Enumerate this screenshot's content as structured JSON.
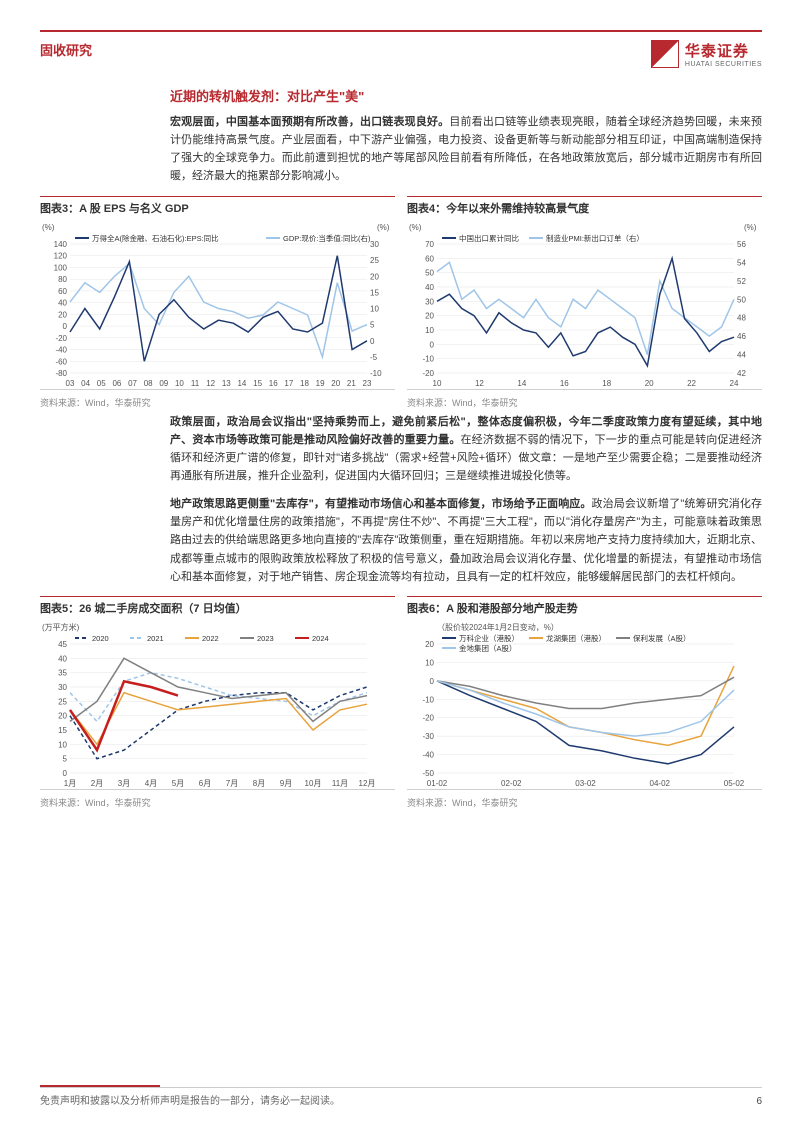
{
  "header": {
    "category": "固收研究",
    "brand": "华泰证券",
    "brand_en": "HUATAI SECURITIES"
  },
  "section_title": "近期的转机触发剂：对比产生\"美\"",
  "para1_bold": "宏观层面，中国基本面预期有所改善，出口链表现良好。",
  "para1_rest": "目前看出口链等业绩表现亮眼，随着全球经济趋势回暖，未来预计仍能维持高景气度。产业层面看，中下游产业偏强，电力投资、设备更新等与新动能部分相互印证，中国高端制造保持了强大的全球竞争力。而此前遭到担忧的地产等尾部风险目前看有所降低，在各地政策放宽后，部分城市近期房市有所回暖，经济最大的拖累部分影响减小。",
  "para2_bold": "政策层面，政治局会议指出\"坚持乘势而上，避免前紧后松\"，整体态度偏积极，今年二季度政策力度有望延续，其中地产、资本市场等政策可能是推动风险偏好改善的重要力量。",
  "para2_rest": "在经济数据不弱的情况下，下一步的重点可能是转向促进经济循环和经济更广谱的修复，即针对\"诸多挑战\"（需求+经营+风险+循环）做文章：一是地产至少需要企稳；二是要推动经济再通胀有所进展，推升企业盈利，促进国内大循环回归；三是继续推进城投化债等。",
  "para3_bold": "地产政策思路更侧重\"去库存\"，有望推动市场信心和基本面修复，市场给予正面响应。",
  "para3_rest": "政治局会议新增了\"统筹研究消化存量房产和优化增量住房的政策措施\"，不再提\"房住不炒\"、不再提\"三大工程\"，而以\"消化存量房产\"为主，可能意味着政策思路由过去的供给端思路更多地向直接的\"去库存\"政策侧重，重在短期措施。年初以来房地产支持力度持续加大，近期北京、成都等重点城市的限购政策放松释放了积极的信号意义，叠加政治局会议消化存量、优化增量的新提法，有望推动市场信心和基本面修复，对于地产销售、房企现金流等均有拉动，且具有一定的杠杆效应，能够缓解居民部门的去杠杆倾向。",
  "chart3": {
    "title": "图表3：A 股 EPS 与名义 GDP",
    "ylabel_left": "(%)",
    "ylabel_right": "(%)",
    "legend": [
      "万得全A(除金融、石油石化):EPS:同比",
      "GDP:现价:当季值:同比(右)"
    ],
    "y_left": {
      "min": -80,
      "max": 140,
      "ticks": [
        140,
        120,
        100,
        80,
        60,
        40,
        20,
        0,
        -20,
        -40,
        -60,
        -80
      ]
    },
    "y_right": {
      "min": -10,
      "max": 30,
      "ticks": [
        30,
        25,
        20,
        15,
        10,
        5,
        0,
        -5,
        -10
      ]
    },
    "x_labels": [
      "03",
      "04",
      "05",
      "06",
      "07",
      "08",
      "09",
      "10",
      "11",
      "12",
      "13",
      "14",
      "15",
      "16",
      "17",
      "18",
      "19",
      "20",
      "21",
      "23"
    ],
    "series_eps": {
      "color": "#1f3a6e",
      "data": [
        -10,
        30,
        -5,
        50,
        110,
        -60,
        20,
        45,
        15,
        -5,
        10,
        5,
        -10,
        15,
        25,
        -5,
        -10,
        5,
        120,
        -40,
        -25
      ]
    },
    "series_gdp": {
      "color": "#9fc5e8",
      "data": [
        12,
        18,
        15,
        20,
        24,
        10,
        5,
        15,
        20,
        12,
        10,
        9,
        7,
        8,
        12,
        10,
        8,
        -5,
        18,
        3,
        5
      ]
    },
    "source": "资料来源：Wind，华泰研究",
    "grid_color": "#e5e5e5",
    "background": "#ffffff",
    "axis_font_size": 8
  },
  "chart4": {
    "title": "图表4：今年以来外需维持较高景气度",
    "ylabel_left": "(%)",
    "legend": [
      "中国出口累计同比",
      "制造业PMI:新出口订单（右）"
    ],
    "y_left": {
      "min": -20,
      "max": 70,
      "ticks": [
        70,
        60,
        50,
        40,
        30,
        20,
        10,
        0,
        -10,
        -20
      ]
    },
    "y_right": {
      "min": 42,
      "max": 56,
      "ticks": [
        56,
        54,
        52,
        50,
        48,
        46,
        44,
        42
      ]
    },
    "x_labels": [
      "10",
      "12",
      "14",
      "16",
      "18",
      "20",
      "22",
      "24"
    ],
    "series_export": {
      "color": "#1f3a6e",
      "data": [
        30,
        35,
        25,
        20,
        8,
        22,
        15,
        10,
        8,
        -2,
        8,
        -8,
        -5,
        8,
        12,
        5,
        0,
        -15,
        35,
        60,
        18,
        8,
        -5,
        2,
        5
      ]
    },
    "series_pmi": {
      "color": "#9fc5e8",
      "data": [
        53,
        54,
        50,
        51,
        49,
        50,
        49,
        48,
        50,
        48,
        47,
        50,
        49,
        51,
        50,
        49,
        48,
        44,
        52,
        49,
        48,
        47,
        46,
        47,
        50
      ]
    },
    "source": "资料来源：Wind，华泰研究",
    "grid_color": "#e5e5e5",
    "background": "#ffffff",
    "axis_font_size": 8
  },
  "chart5": {
    "title": "图表5：26 城二手房成交面积（7 日均值）",
    "ylabel": "(万平方米)",
    "legend": [
      {
        "label": "2020",
        "color": "#1f3a6e",
        "dash": "4,3"
      },
      {
        "label": "2021",
        "color": "#9fc5e8",
        "dash": "4,3"
      },
      {
        "label": "2022",
        "color": "#e8a33d",
        "dash": "0"
      },
      {
        "label": "2023",
        "color": "#808080",
        "dash": "0"
      },
      {
        "label": "2024",
        "color": "#c41e1e",
        "dash": "0",
        "width": 2.5
      }
    ],
    "y": {
      "min": 0,
      "max": 45,
      "ticks": [
        45,
        40,
        35,
        30,
        25,
        20,
        15,
        10,
        5,
        0
      ]
    },
    "x_labels": [
      "1月",
      "2月",
      "3月",
      "4月",
      "5月",
      "6月",
      "7月",
      "8月",
      "9月",
      "10月",
      "11月",
      "12月"
    ],
    "series": {
      "2020": [
        20,
        5,
        8,
        15,
        22,
        25,
        27,
        28,
        28,
        22,
        27,
        30
      ],
      "2021": [
        28,
        18,
        32,
        35,
        33,
        30,
        27,
        26,
        25,
        20,
        25,
        28
      ],
      "2022": [
        22,
        10,
        28,
        25,
        22,
        23,
        24,
        25,
        26,
        15,
        22,
        24
      ],
      "2023": [
        18,
        25,
        40,
        35,
        30,
        28,
        26,
        27,
        28,
        18,
        25,
        27
      ],
      "2024": [
        22,
        8,
        32,
        30,
        27,
        null,
        null,
        null,
        null,
        null,
        null,
        null
      ]
    },
    "source": "资料来源：Wind，华泰研究",
    "grid_color": "#e5e5e5",
    "background": "#ffffff",
    "axis_font_size": 8
  },
  "chart6": {
    "title": "图表6：A 股和港股部分地产股走势",
    "subtitle": "（股价较2024年1月2日变动，%）",
    "legend": [
      {
        "label": "万科企业（港股）",
        "color": "#1f3a6e"
      },
      {
        "label": "龙湖集团（港股）",
        "color": "#e8a33d"
      },
      {
        "label": "保利发展（A股）",
        "color": "#808080"
      },
      {
        "label": "金地集团（A股）",
        "color": "#9fc5e8"
      }
    ],
    "y": {
      "min": -50,
      "max": 20,
      "ticks": [
        20,
        10,
        0,
        -10,
        -20,
        -30,
        -40,
        -50
      ]
    },
    "x_labels": [
      "01-02",
      "02-02",
      "03-02",
      "04-02",
      "05-02"
    ],
    "series": {
      "vanke": [
        0,
        -8,
        -15,
        -22,
        -35,
        -38,
        -42,
        -45,
        -40,
        -25
      ],
      "longfor": [
        0,
        -5,
        -10,
        -15,
        -25,
        -28,
        -32,
        -35,
        -30,
        8
      ],
      "poly": [
        0,
        -3,
        -8,
        -12,
        -15,
        -15,
        -12,
        -10,
        -8,
        2
      ],
      "gemdale": [
        0,
        -5,
        -12,
        -18,
        -25,
        -28,
        -30,
        -28,
        -22,
        -5
      ]
    },
    "source": "资料来源：Wind，华泰研究",
    "grid_color": "#e5e5e5",
    "background": "#ffffff",
    "axis_font_size": 8
  },
  "footer": {
    "disclaimer": "免责声明和披露以及分析师声明是报告的一部分，请务必一起阅读。",
    "page": "6"
  }
}
